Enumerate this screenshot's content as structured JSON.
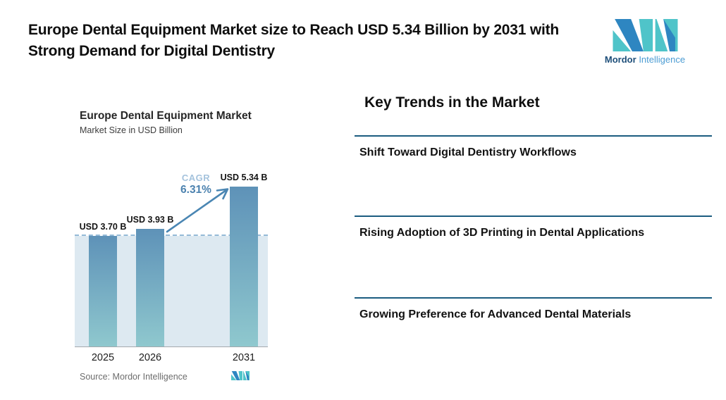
{
  "header": {
    "title": "Europe Dental Equipment Market size to Reach USD 5.34 Billion by 2031 with Strong Demand for Digital Dentistry"
  },
  "logo": {
    "word1": "Mordor",
    "word2": "Intelligence",
    "colors": {
      "teal": "#4fc4c9",
      "blue": "#2e86c1",
      "text_dark": "#1d4e79",
      "text_light": "#4b9cd3"
    }
  },
  "chart_data": {
    "type": "bar",
    "title": "Europe Dental Equipment Market",
    "subtitle": "Market Size in USD Billion",
    "categories": [
      "2025",
      "2026",
      "2031"
    ],
    "values": [
      3.7,
      3.93,
      5.34
    ],
    "value_labels": [
      "USD 3.70 B",
      "USD 3.93 B",
      "USD 5.34 B"
    ],
    "ylabel": "Market Size in USD Billion",
    "ylim": [
      0,
      5.8
    ],
    "grid": false,
    "legend": false,
    "annotations": {
      "cagr_label": "CAGR",
      "cagr_value": "6.31%",
      "dashed_reference_at": 3.7,
      "arrow": "from top of 2026 bar to top of 2031 bar"
    },
    "source": "Source: Mordor Intelligence",
    "colors": {
      "bar_top": "#5e92b8",
      "bar_bottom": "#8fc8ce",
      "band": "#dde9f1",
      "dashed_line": "#94bad7",
      "arrow": "#4a86b3",
      "cagr_light": "#a5c3dd",
      "cagr_dark": "#4c82af"
    }
  },
  "trends": {
    "heading": "Key Trends in the Market",
    "divider_color": "#1b5c80",
    "items": [
      "Shift Toward Digital Dentistry Workflows",
      "Rising Adoption of 3D Printing in Dental Applications",
      "Growing Preference for Advanced Dental Materials"
    ]
  }
}
